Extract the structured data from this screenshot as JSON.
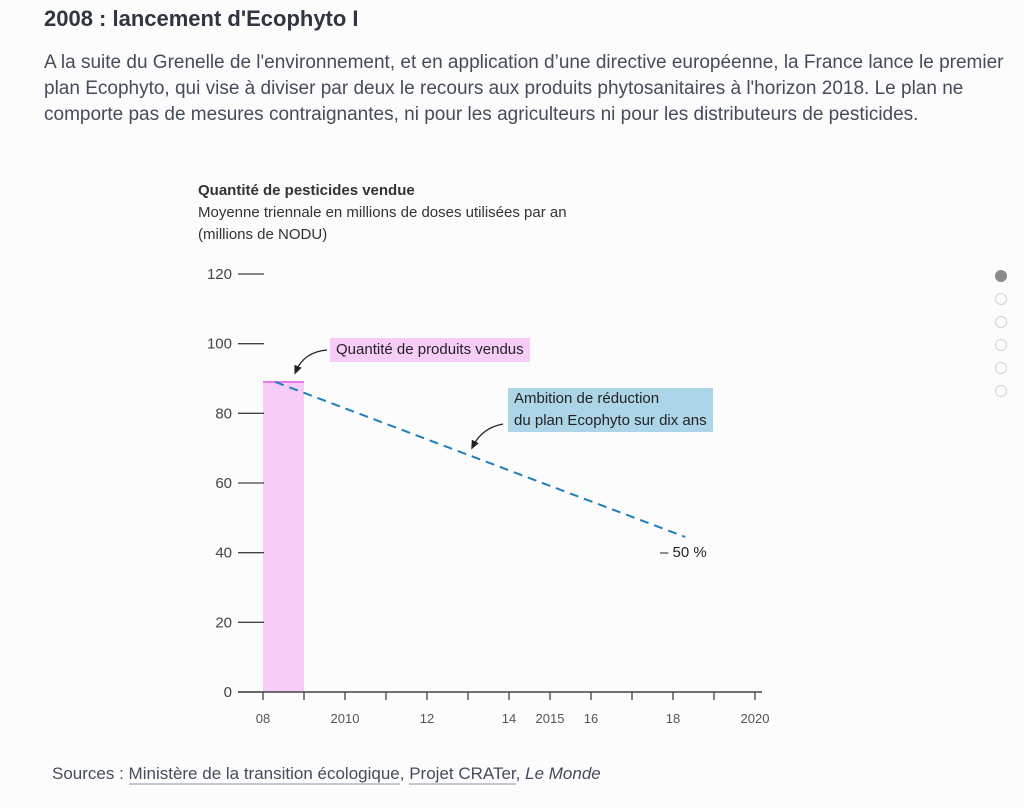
{
  "header": {
    "title": "2008 : lancement d'Ecophyto I",
    "intro": "A la suite du Grenelle de l'environnement, et en application d’une directive européenne, la France lance le premier plan Ecophyto, qui vise à diviser par deux le recours aux produits phytosanitaires à l'horizon 2018. Le plan ne comporte pas de mesures contraignantes, ni pour les agriculteurs ni pour les distributeurs de pesticides."
  },
  "chart_data": {
    "type": "bar",
    "title": "Quantité de pesticides vendue",
    "subtitle_line1": "Moyenne triennale en millions de doses utilisées par an",
    "subtitle_line2": "(millions de NODU)",
    "xlim": [
      2008,
      2020.2
    ],
    "ylim": [
      0,
      120
    ],
    "y_ticks": [
      0,
      20,
      40,
      60,
      80,
      100,
      120
    ],
    "y_tick_labels": [
      "0",
      "20",
      "40",
      "60",
      "80",
      "100",
      "120"
    ],
    "x_ticks": [
      2008,
      2009,
      2010,
      2011,
      2012,
      2013,
      2014,
      2015,
      2016,
      2017,
      2018,
      2019,
      2020
    ],
    "x_tick_labels": [
      {
        "year": 2008,
        "label": "08"
      },
      {
        "year": 2010,
        "label": "2010"
      },
      {
        "year": 2012,
        "label": "12"
      },
      {
        "year": 2014,
        "label": "14"
      },
      {
        "year": 2015,
        "label": "2015"
      },
      {
        "year": 2016,
        "label": "16"
      },
      {
        "year": 2018,
        "label": "18"
      },
      {
        "year": 2020,
        "label": "2020"
      }
    ],
    "bars": [
      {
        "name": "Quantité de produits vendus",
        "x_start": 2008,
        "x_end": 2009,
        "value": 89,
        "color": "#f7cdf8",
        "top_color": "#e47ae8"
      }
    ],
    "target_line": {
      "name": "Ambition de réduction du plan Ecophyto sur dix ans",
      "points": [
        {
          "x": 2008.3,
          "y": 89
        },
        {
          "x": 2018.3,
          "y": 44.5
        }
      ],
      "color": "#1f7fbd",
      "style": "dashed"
    },
    "annotations": {
      "bar_label": "Quantité de produits vendus",
      "line_label_1": "Ambition de réduction",
      "line_label_2": "du plan Ecophyto sur dix ans",
      "reduction_label": "– 50 %"
    },
    "colors": {
      "axis": "#444444",
      "bar_fill": "#f7cdf8",
      "bar_top": "#e47ae8",
      "line": "#1f7fbd",
      "pink_box": "#f7cdf8",
      "blue_box": "#acd5e8"
    }
  },
  "sources": {
    "prefix": "Sources : ",
    "link1": "Ministère de la transition écologique",
    "sep1": ", ",
    "link2": "Projet CRATer",
    "sep2": ", ",
    "italic": "Le Monde"
  },
  "pager": {
    "count": 6,
    "active_index": 0
  }
}
